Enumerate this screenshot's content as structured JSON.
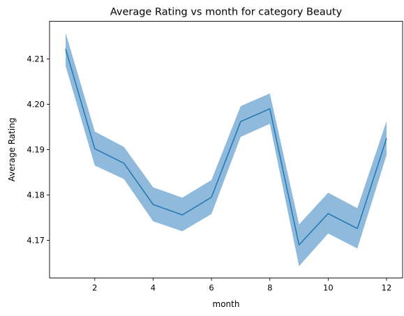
{
  "chart_data": {
    "type": "line",
    "title": "Average Rating vs month for category Beauty",
    "xlabel": "month",
    "ylabel": "Average Rating",
    "xlim": [
      0.45,
      12.55
    ],
    "ylim": [
      4.1617,
      4.2183
    ],
    "xticks": [
      2,
      4,
      6,
      8,
      10,
      12
    ],
    "yticks": [
      4.17,
      4.18,
      4.19,
      4.2,
      4.21
    ],
    "grid": false,
    "legend": "none",
    "series": [
      {
        "x": [
          1,
          2,
          3,
          4,
          5,
          6,
          7,
          8,
          9,
          10,
          11,
          12
        ],
        "values": [
          4.2122,
          4.1902,
          4.187,
          4.1779,
          4.1756,
          4.1795,
          4.1962,
          4.199,
          4.169,
          4.1759,
          4.1726,
          4.1925
        ],
        "lower": [
          4.2085,
          4.1865,
          4.1835,
          4.1742,
          4.172,
          4.1758,
          4.1928,
          4.1957,
          4.1643,
          4.1715,
          4.1682,
          4.1888
        ],
        "upper": [
          4.2158,
          4.194,
          4.1906,
          4.1817,
          4.1794,
          4.1833,
          4.1996,
          4.2024,
          4.1735,
          4.1805,
          4.1771,
          4.1963
        ],
        "color": "#1f77b4",
        "band_color": "#8fbadb"
      }
    ]
  }
}
